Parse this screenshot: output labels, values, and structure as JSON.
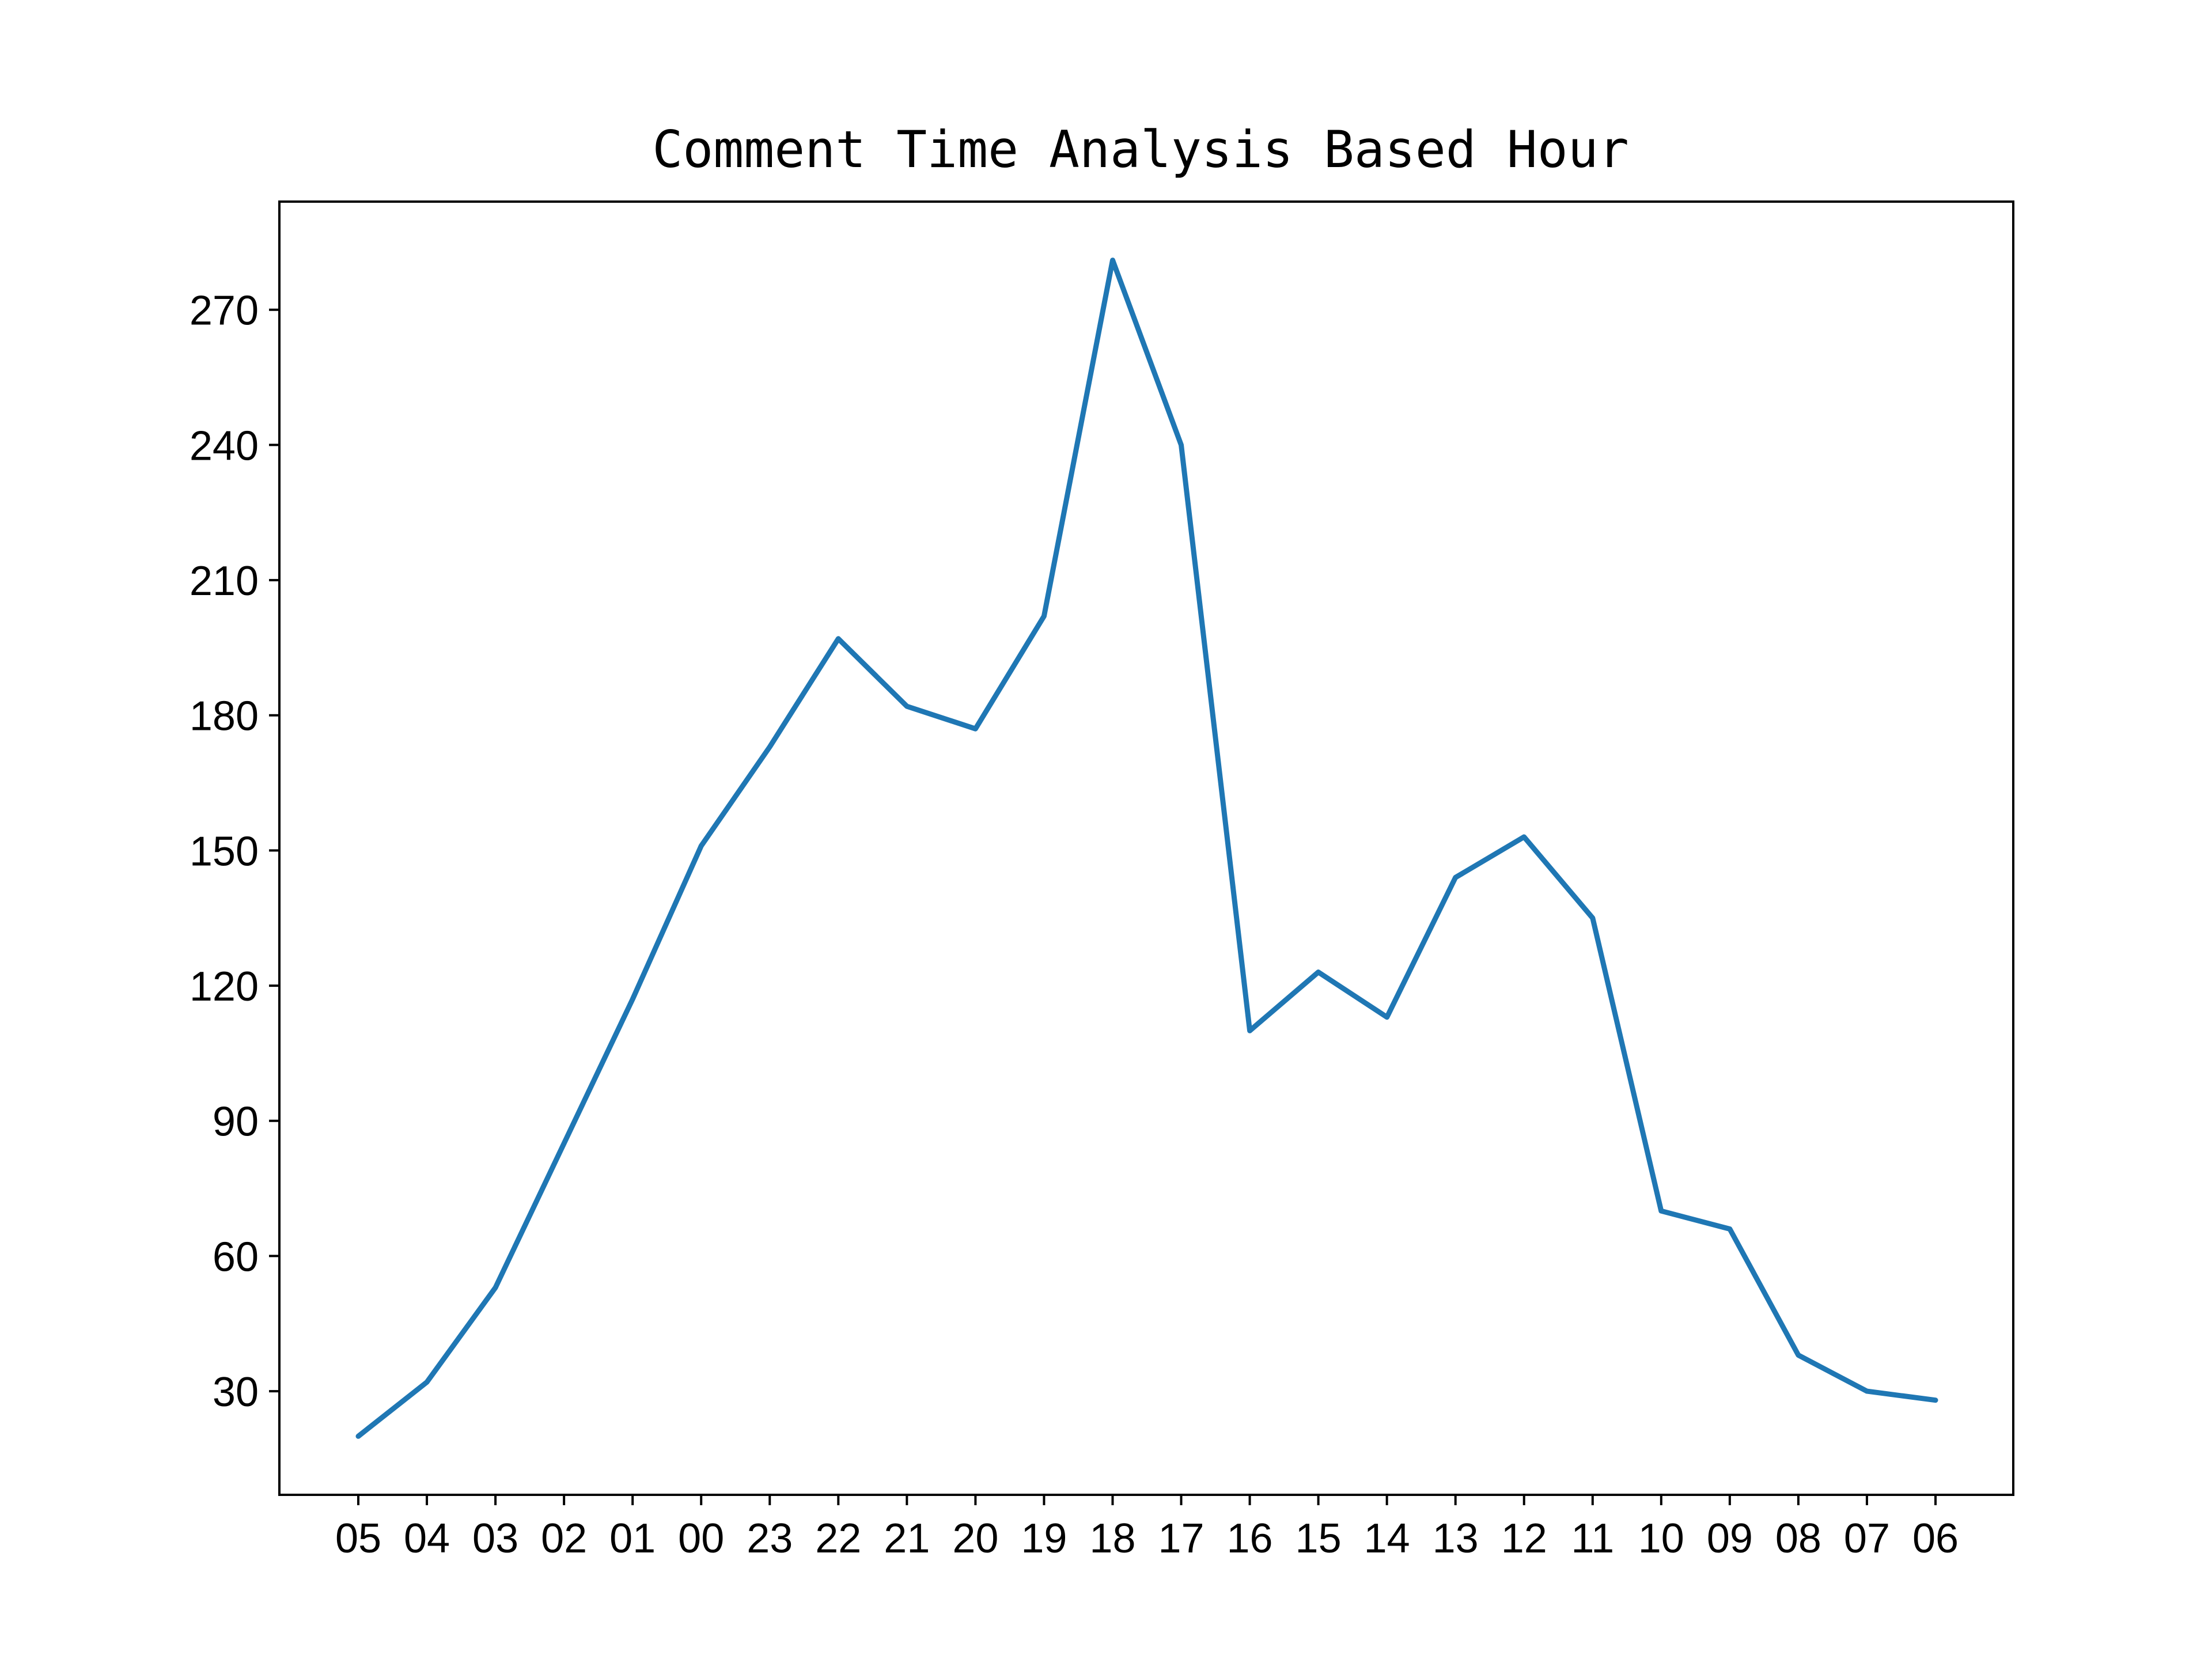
{
  "chart_data": {
    "type": "line",
    "title": "Comment Time Analysis Based Hour",
    "xlabel": "",
    "ylabel": "",
    "categories": [
      "05",
      "04",
      "03",
      "02",
      "01",
      "00",
      "23",
      "22",
      "21",
      "20",
      "19",
      "18",
      "17",
      "16",
      "15",
      "14",
      "13",
      "12",
      "11",
      "10",
      "09",
      "08",
      "07",
      "06"
    ],
    "series": [
      {
        "values": [
          20,
          32,
          53,
          85,
          117,
          151,
          173,
          197,
          182,
          177,
          202,
          281,
          240,
          110,
          123,
          113,
          144,
          153,
          135,
          70,
          66,
          38,
          30,
          28
        ],
        "color": "#1f77b4"
      }
    ],
    "yticks": [
      30,
      60,
      90,
      120,
      150,
      180,
      210,
      240,
      270
    ],
    "ylim": [
      7,
      294
    ],
    "grid": false,
    "legend": "none"
  }
}
